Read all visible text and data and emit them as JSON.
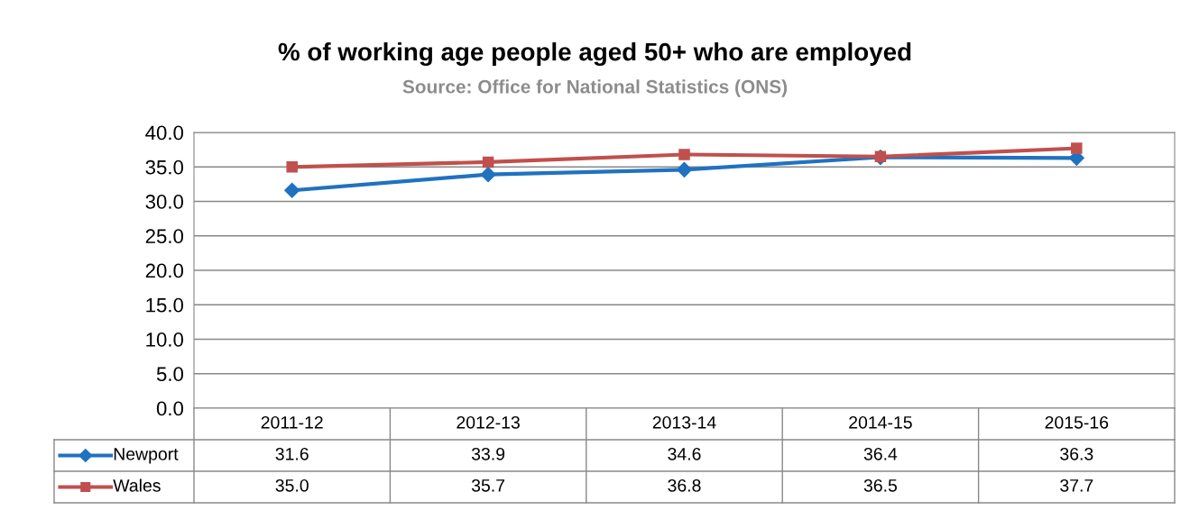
{
  "chart_data": {
    "type": "line",
    "title": "% of working age people aged 50+ who are employed",
    "subtitle": "Source: Office for National Statistics (ONS)",
    "categories": [
      "2011-12",
      "2012-13",
      "2013-14",
      "2014-15",
      "2015-16"
    ],
    "series": [
      {
        "name": "Newport",
        "color": "#2072c0",
        "marker": "diamond",
        "values": [
          31.6,
          33.9,
          34.6,
          36.4,
          36.3
        ],
        "value_labels": [
          "31.6",
          "33.9",
          "34.6",
          "36.4",
          "36.3"
        ]
      },
      {
        "name": "Wales",
        "color": "#c0504d",
        "marker": "square",
        "values": [
          35.0,
          35.7,
          36.8,
          36.5,
          37.7
        ],
        "value_labels": [
          "35.0",
          "35.7",
          "36.8",
          "36.5",
          "37.7"
        ]
      }
    ],
    "ylim": [
      0,
      40
    ],
    "yticks": [
      {
        "value": 0,
        "label": "0.0"
      },
      {
        "value": 5,
        "label": "5.0"
      },
      {
        "value": 10,
        "label": "10.0"
      },
      {
        "value": 15,
        "label": "15.0"
      },
      {
        "value": 20,
        "label": "20.0"
      },
      {
        "value": 25,
        "label": "25.0"
      },
      {
        "value": 30,
        "label": "30.0"
      },
      {
        "value": 35,
        "label": "35.0"
      },
      {
        "value": 40,
        "label": "40.0"
      }
    ],
    "grid": "y",
    "legend": "bottom",
    "line_style": "solid"
  }
}
